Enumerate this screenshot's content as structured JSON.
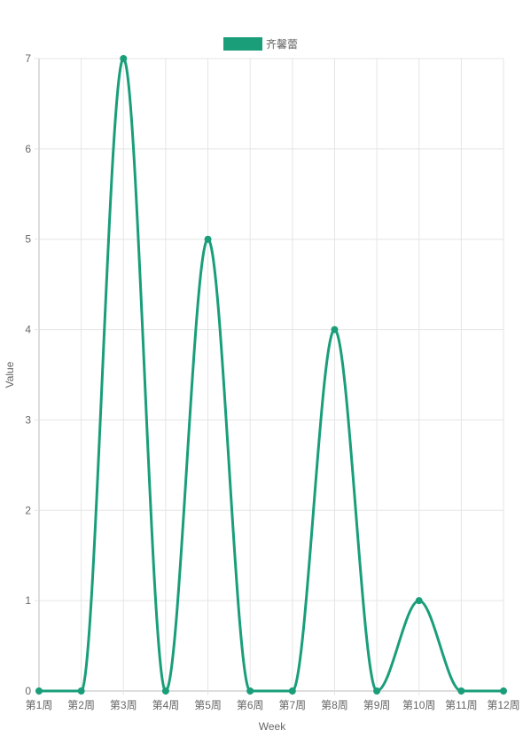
{
  "chart_data": {
    "type": "line",
    "categories": [
      "第1周",
      "第2周",
      "第3周",
      "第4周",
      "第5周",
      "第6周",
      "第7周",
      "第8周",
      "第9周",
      "第10周",
      "第11周",
      "第12周"
    ],
    "series": [
      {
        "name": "齐馨蕾",
        "values": [
          0,
          0,
          7,
          0,
          5,
          0,
          0,
          4,
          0,
          1,
          0,
          0
        ],
        "color": "#1a9e7a"
      }
    ],
    "xlabel": "Week",
    "ylabel": "Value",
    "ylim": [
      0,
      7
    ],
    "yticks": [
      "0",
      "1",
      "2",
      "3",
      "4",
      "5",
      "6",
      "7"
    ],
    "grid": true,
    "smooth": true,
    "legend_position": "top-center"
  },
  "colors": {
    "grid": "#e5e5e5",
    "axis": "#bbbbbb",
    "text": "#666666"
  }
}
